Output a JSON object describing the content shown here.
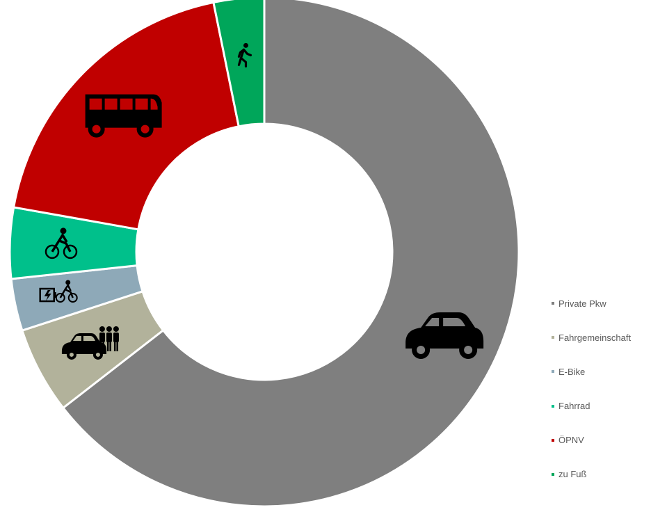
{
  "chart_data": {
    "type": "pie",
    "variant": "donut",
    "title": "",
    "categories": [
      "Private Pkw",
      "Fahrgemeinschaft",
      "E-Bike",
      "Fahrrad",
      "ÖPNV",
      "zu Fuß"
    ],
    "values": [
      64.5,
      5.5,
      3.3,
      4.5,
      19.0,
      3.2
    ],
    "unit": "%",
    "colors": [
      "#7f7f7f",
      "#b2b29b",
      "#8ea9b8",
      "#00c08b",
      "#c00000",
      "#00a65a"
    ],
    "icons": [
      "car-icon",
      "carpool-icon",
      "e-bike-icon",
      "bicycle-icon",
      "bus-icon",
      "walking-icon"
    ],
    "legend_position": "right",
    "labels_shown": false
  }
}
